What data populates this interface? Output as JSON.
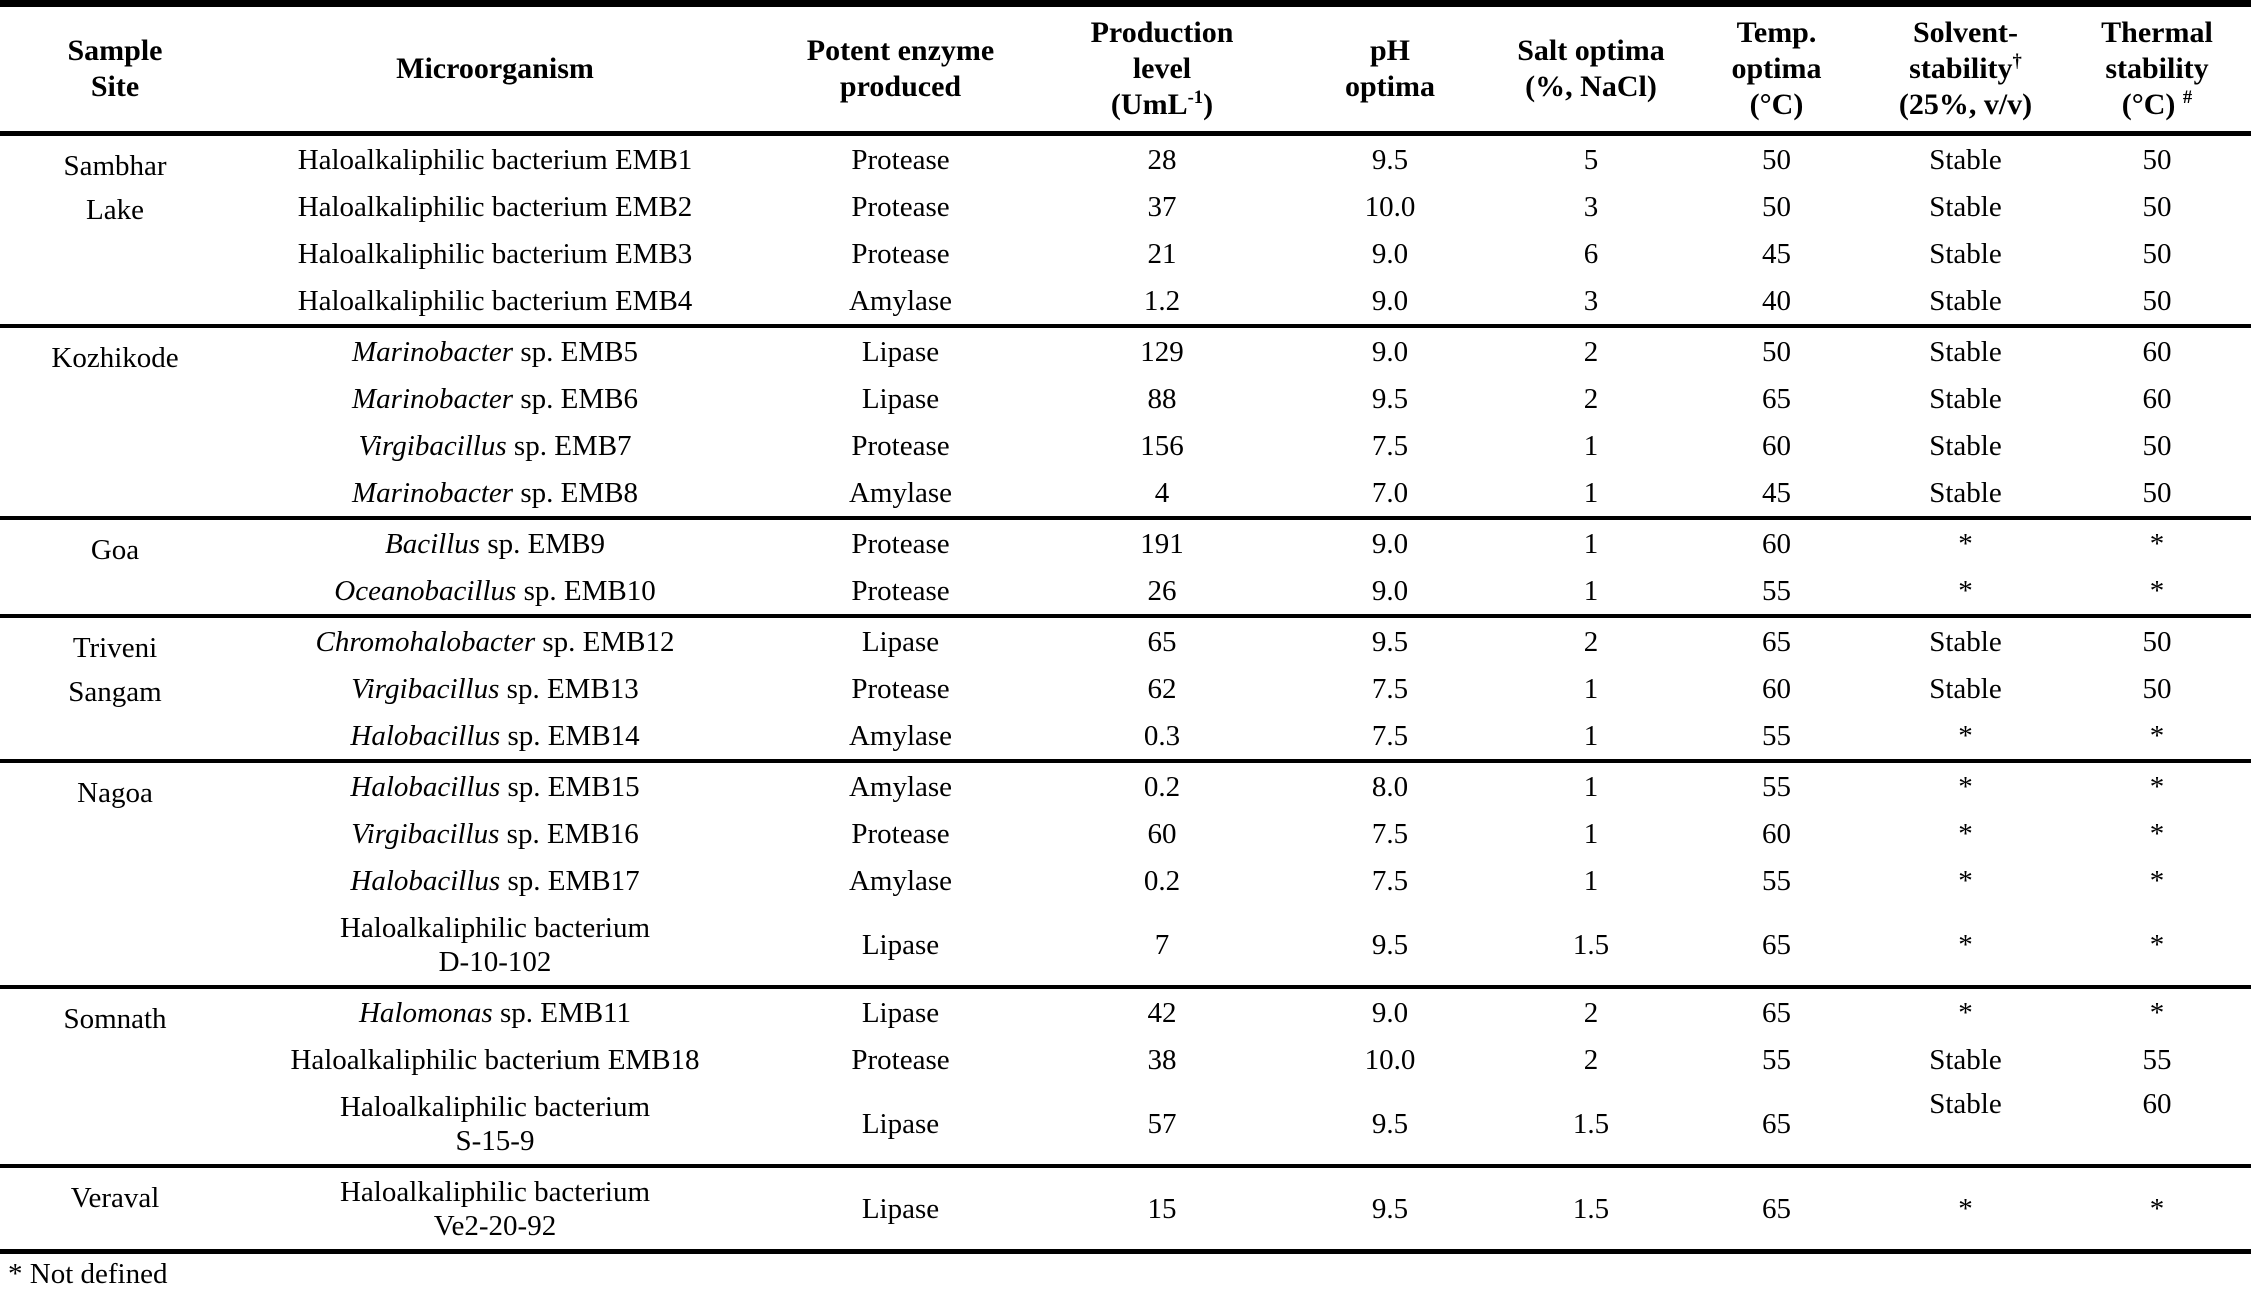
{
  "page": {
    "background": "#ffffff",
    "text_color": "#000000"
  },
  "footnote": "* Not defined",
  "table": {
    "columns": [
      {
        "id": "sample-site",
        "lines": [
          [
            {
              "t": "Sample"
            }
          ],
          [
            {
              "t": "Site"
            }
          ]
        ]
      },
      {
        "id": "microorganism",
        "lines": [
          [
            {
              "t": "Microorganism"
            }
          ]
        ]
      },
      {
        "id": "potent-enzyme",
        "lines": [
          [
            {
              "t": "Potent enzyme"
            }
          ],
          [
            {
              "t": "produced"
            }
          ]
        ]
      },
      {
        "id": "production-level",
        "lines": [
          [
            {
              "t": "Production"
            }
          ],
          [
            {
              "t": "level"
            }
          ],
          [
            {
              "t": "(UmL"
            },
            {
              "t": "-1",
              "sup": true
            },
            {
              "t": ")"
            }
          ]
        ]
      },
      {
        "id": "ph-optima",
        "lines": [
          [
            {
              "t": "pH"
            }
          ],
          [
            {
              "t": "optima"
            }
          ]
        ]
      },
      {
        "id": "salt-optima",
        "lines": [
          [
            {
              "t": "Salt optima"
            }
          ],
          [
            {
              "t": "(%, NaCl)"
            }
          ]
        ]
      },
      {
        "id": "temp-optima",
        "lines": [
          [
            {
              "t": "Temp."
            }
          ],
          [
            {
              "t": "optima"
            }
          ],
          [
            {
              "t": "(°C)"
            }
          ]
        ]
      },
      {
        "id": "solvent-stability",
        "lines": [
          [
            {
              "t": "Solvent-"
            }
          ],
          [
            {
              "t": "stability"
            },
            {
              "t": "†",
              "sup": true
            }
          ],
          [
            {
              "t": "(25%, v/v)"
            }
          ]
        ]
      },
      {
        "id": "thermal-stability",
        "lines": [
          [
            {
              "t": "Thermal"
            }
          ],
          [
            {
              "t": "stability"
            }
          ],
          [
            {
              "t": "(°C) "
            },
            {
              "t": "#",
              "sup": true
            }
          ]
        ]
      }
    ],
    "sections": [
      {
        "site": [
          "Sambhar",
          "Lake"
        ],
        "rows": [
          {
            "micro": [
              [
                {
                  "t": "Haloalkaliphilic bacterium EMB1"
                }
              ]
            ],
            "enzyme": "Protease",
            "production": "28",
            "ph": "9.5",
            "salt": "5",
            "temp": "50",
            "solvent": "Stable",
            "thermal": "50"
          },
          {
            "micro": [
              [
                {
                  "t": "Haloalkaliphilic bacterium EMB2"
                }
              ]
            ],
            "enzyme": "Protease",
            "production": "37",
            "ph": "10.0",
            "salt": "3",
            "temp": "50",
            "solvent": "Stable",
            "thermal": "50"
          },
          {
            "micro": [
              [
                {
                  "t": "Haloalkaliphilic bacterium EMB3"
                }
              ]
            ],
            "enzyme": "Protease",
            "production": "21",
            "ph": "9.0",
            "salt": "6",
            "temp": "45",
            "solvent": "Stable",
            "thermal": "50"
          },
          {
            "micro": [
              [
                {
                  "t": "Haloalkaliphilic bacterium EMB4"
                }
              ]
            ],
            "enzyme": "Amylase",
            "production": "1.2",
            "ph": "9.0",
            "salt": "3",
            "temp": "40",
            "solvent": "Stable",
            "thermal": "50"
          }
        ]
      },
      {
        "site": [
          "Kozhikode"
        ],
        "rows": [
          {
            "micro": [
              [
                {
                  "t": "Marinobacter",
                  "i": true
                },
                {
                  "t": " sp. EMB5"
                }
              ]
            ],
            "enzyme": "Lipase",
            "production": "129",
            "ph": "9.0",
            "salt": "2",
            "temp": "50",
            "solvent": "Stable",
            "thermal": "60"
          },
          {
            "micro": [
              [
                {
                  "t": "Marinobacter",
                  "i": true
                },
                {
                  "t": " sp. EMB6"
                }
              ]
            ],
            "enzyme": "Lipase",
            "production": "88",
            "ph": "9.5",
            "salt": "2",
            "temp": "65",
            "solvent": "Stable",
            "thermal": "60"
          },
          {
            "micro": [
              [
                {
                  "t": "Virgibacillus",
                  "i": true
                },
                {
                  "t": " sp. EMB7"
                }
              ]
            ],
            "enzyme": "Protease",
            "production": "156",
            "ph": "7.5",
            "salt": "1",
            "temp": "60",
            "solvent": "Stable",
            "thermal": "50"
          },
          {
            "micro": [
              [
                {
                  "t": "Marinobacter",
                  "i": true
                },
                {
                  "t": " sp. EMB8"
                }
              ]
            ],
            "enzyme": "Amylase",
            "production": "4",
            "ph": "7.0",
            "salt": "1",
            "temp": "45",
            "solvent": "Stable",
            "thermal": "50"
          }
        ]
      },
      {
        "site": [
          "Goa"
        ],
        "rows": [
          {
            "micro": [
              [
                {
                  "t": "Bacillus",
                  "i": true
                },
                {
                  "t": " sp. EMB9"
                }
              ]
            ],
            "enzyme": "Protease",
            "production": "191",
            "ph": "9.0",
            "salt": "1",
            "temp": "60",
            "solvent": "*",
            "thermal": "*"
          },
          {
            "micro": [
              [
                {
                  "t": "Oceanobacillus",
                  "i": true
                },
                {
                  "t": " sp. EMB10"
                }
              ]
            ],
            "enzyme": "Protease",
            "production": "26",
            "ph": "9.0",
            "salt": "1",
            "temp": "55",
            "solvent": "*",
            "thermal": "*"
          }
        ]
      },
      {
        "site": [
          "Triveni",
          "Sangam"
        ],
        "rows": [
          {
            "micro": [
              [
                {
                  "t": "Chromohalobacter",
                  "i": true
                },
                {
                  "t": " sp. EMB12"
                }
              ]
            ],
            "enzyme": "Lipase",
            "production": "65",
            "ph": "9.5",
            "salt": "2",
            "temp": "65",
            "solvent": "Stable",
            "thermal": "50"
          },
          {
            "micro": [
              [
                {
                  "t": "Virgibacillus",
                  "i": true
                },
                {
                  "t": " sp. EMB13"
                }
              ]
            ],
            "enzyme": "Protease",
            "production": "62",
            "ph": "7.5",
            "salt": "1",
            "temp": "60",
            "solvent": "Stable",
            "thermal": "50"
          },
          {
            "micro": [
              [
                {
                  "t": "Halobacillus",
                  "i": true
                },
                {
                  "t": " sp. EMB14"
                }
              ]
            ],
            "enzyme": "Amylase",
            "production": "0.3",
            "ph": "7.5",
            "salt": "1",
            "temp": "55",
            "solvent": "*",
            "thermal": "*"
          }
        ]
      },
      {
        "site": [
          "Nagoa"
        ],
        "rows": [
          {
            "micro": [
              [
                {
                  "t": "Halobacillus",
                  "i": true
                },
                {
                  "t": " sp. EMB15"
                }
              ]
            ],
            "enzyme": "Amylase",
            "production": "0.2",
            "ph": "8.0",
            "salt": "1",
            "temp": "55",
            "solvent": "*",
            "thermal": "*"
          },
          {
            "micro": [
              [
                {
                  "t": "Virgibacillus",
                  "i": true
                },
                {
                  "t": " sp. EMB16"
                }
              ]
            ],
            "enzyme": "Protease",
            "production": "60",
            "ph": "7.5",
            "salt": "1",
            "temp": "60",
            "solvent": "*",
            "thermal": "*"
          },
          {
            "micro": [
              [
                {
                  "t": "Halobacillus",
                  "i": true
                },
                {
                  "t": " sp. EMB17"
                }
              ]
            ],
            "enzyme": "Amylase",
            "production": "0.2",
            "ph": "7.5",
            "salt": "1",
            "temp": "55",
            "solvent": "*",
            "thermal": "*"
          },
          {
            "micro": [
              [
                {
                  "t": "Haloalkaliphilic bacterium"
                }
              ],
              [
                {
                  "t": "D-10-102"
                }
              ]
            ],
            "enzyme": "Lipase",
            "production": "7",
            "ph": "9.5",
            "salt": "1.5",
            "temp": "65",
            "solvent": "*",
            "thermal": "*"
          }
        ]
      },
      {
        "site": [
          "Somnath"
        ],
        "rows": [
          {
            "micro": [
              [
                {
                  "t": "Halomonas",
                  "i": true
                },
                {
                  "t": " sp. EMB11"
                }
              ]
            ],
            "enzyme": "Lipase",
            "production": "42",
            "ph": "9.0",
            "salt": "2",
            "temp": "65",
            "solvent": "*",
            "thermal": "*"
          },
          {
            "micro": [
              [
                {
                  "t": "Haloalkaliphilic bacterium EMB18"
                }
              ]
            ],
            "enzyme": "Protease",
            "production": "38",
            "ph": "10.0",
            "salt": "2",
            "temp": "55",
            "solvent": "Stable",
            "thermal": "55"
          },
          {
            "micro": [
              [
                {
                  "t": "Haloalkaliphilic bacterium"
                }
              ],
              [
                {
                  "t": "S-15-9"
                }
              ]
            ],
            "enzyme": "Lipase",
            "production": "57",
            "ph": "9.5",
            "salt": "1.5",
            "temp": "65",
            "solvent": "Stable",
            "thermal": "60",
            "raise": true
          }
        ]
      },
      {
        "site": [
          "Veraval"
        ],
        "rows": [
          {
            "micro": [
              [
                {
                  "t": "Haloalkaliphilic bacterium"
                }
              ],
              [
                {
                  "t": "Ve2-20-92"
                }
              ]
            ],
            "enzyme": "Lipase",
            "production": "15",
            "ph": "9.5",
            "salt": "1.5",
            "temp": "65",
            "solvent": "*",
            "thermal": "*"
          }
        ]
      }
    ]
  }
}
